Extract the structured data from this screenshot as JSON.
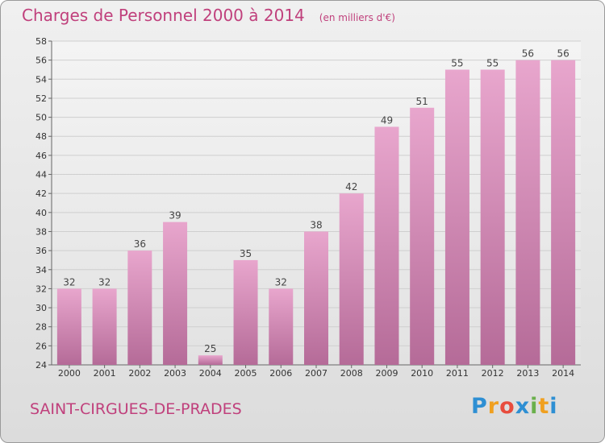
{
  "title": "Charges de Personnel 2000 à 2014",
  "subtitle": "(en milliers d'€)",
  "commune": "SAINT-CIRGUES-DE-PRADES",
  "logo": [
    "P",
    "r",
    "o",
    "x",
    "i",
    "t",
    "i"
  ],
  "chart_data": {
    "type": "bar",
    "title": "Charges de Personnel 2000 à 2014",
    "subtitle": "(en milliers d'€)",
    "categories": [
      "2000",
      "2001",
      "2002",
      "2003",
      "2004",
      "2005",
      "2006",
      "2007",
      "2008",
      "2009",
      "2010",
      "2011",
      "2012",
      "2013",
      "2014"
    ],
    "values": [
      32,
      32,
      36,
      39,
      25,
      35,
      32,
      38,
      42,
      49,
      51,
      55,
      55,
      56,
      56
    ],
    "ylim": [
      24,
      58
    ],
    "yticks": [
      24,
      26,
      28,
      30,
      32,
      34,
      36,
      38,
      40,
      42,
      44,
      46,
      48,
      50,
      52,
      54,
      56,
      58
    ],
    "grid": true,
    "bar_color": "#d98bb8",
    "title_color": "#c0407c"
  }
}
